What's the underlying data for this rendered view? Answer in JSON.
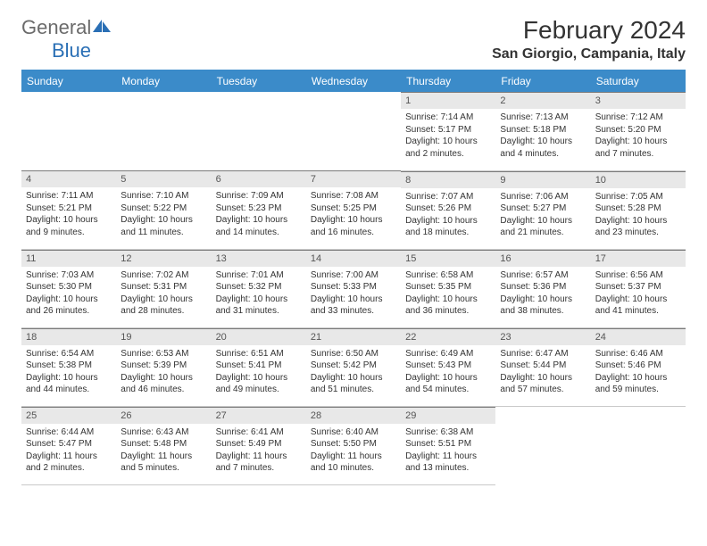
{
  "logo": {
    "text1": "General",
    "text2": "Blue"
  },
  "title": "February 2024",
  "location": "San Giorgio, Campania, Italy",
  "colors": {
    "header_bg": "#3b8bc9",
    "header_text": "#ffffff",
    "daynum_bg": "#e8e8e8",
    "daynum_border": "#7a7a7a",
    "cell_border": "#c9c9c9",
    "body_text": "#333333",
    "logo_gray": "#6b6b6b",
    "logo_blue": "#2a6fb5"
  },
  "weekdays": [
    "Sunday",
    "Monday",
    "Tuesday",
    "Wednesday",
    "Thursday",
    "Friday",
    "Saturday"
  ],
  "weeks": [
    [
      null,
      null,
      null,
      null,
      {
        "n": "1",
        "sr": "Sunrise: 7:14 AM",
        "ss": "Sunset: 5:17 PM",
        "dl": "Daylight: 10 hours and 2 minutes."
      },
      {
        "n": "2",
        "sr": "Sunrise: 7:13 AM",
        "ss": "Sunset: 5:18 PM",
        "dl": "Daylight: 10 hours and 4 minutes."
      },
      {
        "n": "3",
        "sr": "Sunrise: 7:12 AM",
        "ss": "Sunset: 5:20 PM",
        "dl": "Daylight: 10 hours and 7 minutes."
      }
    ],
    [
      {
        "n": "4",
        "sr": "Sunrise: 7:11 AM",
        "ss": "Sunset: 5:21 PM",
        "dl": "Daylight: 10 hours and 9 minutes."
      },
      {
        "n": "5",
        "sr": "Sunrise: 7:10 AM",
        "ss": "Sunset: 5:22 PM",
        "dl": "Daylight: 10 hours and 11 minutes."
      },
      {
        "n": "6",
        "sr": "Sunrise: 7:09 AM",
        "ss": "Sunset: 5:23 PM",
        "dl": "Daylight: 10 hours and 14 minutes."
      },
      {
        "n": "7",
        "sr": "Sunrise: 7:08 AM",
        "ss": "Sunset: 5:25 PM",
        "dl": "Daylight: 10 hours and 16 minutes."
      },
      {
        "n": "8",
        "sr": "Sunrise: 7:07 AM",
        "ss": "Sunset: 5:26 PM",
        "dl": "Daylight: 10 hours and 18 minutes."
      },
      {
        "n": "9",
        "sr": "Sunrise: 7:06 AM",
        "ss": "Sunset: 5:27 PM",
        "dl": "Daylight: 10 hours and 21 minutes."
      },
      {
        "n": "10",
        "sr": "Sunrise: 7:05 AM",
        "ss": "Sunset: 5:28 PM",
        "dl": "Daylight: 10 hours and 23 minutes."
      }
    ],
    [
      {
        "n": "11",
        "sr": "Sunrise: 7:03 AM",
        "ss": "Sunset: 5:30 PM",
        "dl": "Daylight: 10 hours and 26 minutes."
      },
      {
        "n": "12",
        "sr": "Sunrise: 7:02 AM",
        "ss": "Sunset: 5:31 PM",
        "dl": "Daylight: 10 hours and 28 minutes."
      },
      {
        "n": "13",
        "sr": "Sunrise: 7:01 AM",
        "ss": "Sunset: 5:32 PM",
        "dl": "Daylight: 10 hours and 31 minutes."
      },
      {
        "n": "14",
        "sr": "Sunrise: 7:00 AM",
        "ss": "Sunset: 5:33 PM",
        "dl": "Daylight: 10 hours and 33 minutes."
      },
      {
        "n": "15",
        "sr": "Sunrise: 6:58 AM",
        "ss": "Sunset: 5:35 PM",
        "dl": "Daylight: 10 hours and 36 minutes."
      },
      {
        "n": "16",
        "sr": "Sunrise: 6:57 AM",
        "ss": "Sunset: 5:36 PM",
        "dl": "Daylight: 10 hours and 38 minutes."
      },
      {
        "n": "17",
        "sr": "Sunrise: 6:56 AM",
        "ss": "Sunset: 5:37 PM",
        "dl": "Daylight: 10 hours and 41 minutes."
      }
    ],
    [
      {
        "n": "18",
        "sr": "Sunrise: 6:54 AM",
        "ss": "Sunset: 5:38 PM",
        "dl": "Daylight: 10 hours and 44 minutes."
      },
      {
        "n": "19",
        "sr": "Sunrise: 6:53 AM",
        "ss": "Sunset: 5:39 PM",
        "dl": "Daylight: 10 hours and 46 minutes."
      },
      {
        "n": "20",
        "sr": "Sunrise: 6:51 AM",
        "ss": "Sunset: 5:41 PM",
        "dl": "Daylight: 10 hours and 49 minutes."
      },
      {
        "n": "21",
        "sr": "Sunrise: 6:50 AM",
        "ss": "Sunset: 5:42 PM",
        "dl": "Daylight: 10 hours and 51 minutes."
      },
      {
        "n": "22",
        "sr": "Sunrise: 6:49 AM",
        "ss": "Sunset: 5:43 PM",
        "dl": "Daylight: 10 hours and 54 minutes."
      },
      {
        "n": "23",
        "sr": "Sunrise: 6:47 AM",
        "ss": "Sunset: 5:44 PM",
        "dl": "Daylight: 10 hours and 57 minutes."
      },
      {
        "n": "24",
        "sr": "Sunrise: 6:46 AM",
        "ss": "Sunset: 5:46 PM",
        "dl": "Daylight: 10 hours and 59 minutes."
      }
    ],
    [
      {
        "n": "25",
        "sr": "Sunrise: 6:44 AM",
        "ss": "Sunset: 5:47 PM",
        "dl": "Daylight: 11 hours and 2 minutes."
      },
      {
        "n": "26",
        "sr": "Sunrise: 6:43 AM",
        "ss": "Sunset: 5:48 PM",
        "dl": "Daylight: 11 hours and 5 minutes."
      },
      {
        "n": "27",
        "sr": "Sunrise: 6:41 AM",
        "ss": "Sunset: 5:49 PM",
        "dl": "Daylight: 11 hours and 7 minutes."
      },
      {
        "n": "28",
        "sr": "Sunrise: 6:40 AM",
        "ss": "Sunset: 5:50 PM",
        "dl": "Daylight: 11 hours and 10 minutes."
      },
      {
        "n": "29",
        "sr": "Sunrise: 6:38 AM",
        "ss": "Sunset: 5:51 PM",
        "dl": "Daylight: 11 hours and 13 minutes."
      },
      null,
      null
    ]
  ]
}
